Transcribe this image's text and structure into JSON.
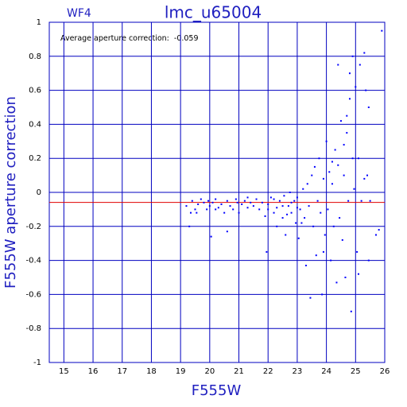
{
  "chart_data": {
    "type": "scatter",
    "title": "lmc_u65004",
    "subtitle": "WF4",
    "annotation": {
      "label": "Average aperture correction:",
      "value": -0.059,
      "color": "#e00000"
    },
    "x_label": "F555W",
    "y_label": "F555W aperture correction",
    "xlim": [
      14.5,
      26
    ],
    "ylim": [
      -1,
      1
    ],
    "xticks": [
      15,
      16,
      17,
      18,
      19,
      20,
      21,
      22,
      23,
      24,
      25,
      26
    ],
    "yticks": [
      -1,
      -0.8,
      -0.6,
      -0.4,
      -0.2,
      0,
      0.2,
      0.4,
      0.6,
      0.8,
      1
    ],
    "grid": true,
    "grid_color": "#0000c0",
    "series": [
      {
        "color": "#0000ff",
        "x": [
          19.2,
          19.3,
          19.35,
          19.4,
          19.5,
          19.55,
          19.6,
          19.7,
          19.8,
          19.9,
          19.95,
          20.0,
          20.1,
          20.05,
          20.2,
          20.3,
          20.4,
          20.5,
          20.6,
          20.7,
          20.8,
          20.9,
          20.95,
          21.0,
          21.1,
          21.2,
          21.3,
          21.4,
          20.6,
          21.5,
          21.6,
          21.7,
          21.8,
          21.9,
          22.0,
          21.95,
          22.1,
          22.2,
          22.3,
          22.3,
          22.4,
          22.5,
          22.55,
          22.6,
          22.7,
          22.75,
          22.8,
          22.9,
          22.95,
          23.0,
          23.05,
          23.1,
          23.2,
          23.25,
          23.3,
          23.35,
          23.4,
          23.45,
          23.5,
          23.55,
          23.6,
          23.65,
          23.7,
          23.75,
          23.8,
          23.85,
          23.9,
          23.95,
          24.0,
          24.05,
          24.1,
          24.15,
          24.2,
          24.25,
          24.3,
          24.35,
          24.4,
          24.45,
          24.5,
          24.55,
          24.6,
          24.65,
          24.7,
          24.75,
          24.8,
          24.85,
          24.9,
          24.95,
          25.0,
          25.05,
          25.1,
          25.15,
          25.2,
          25.3,
          25.35,
          25.4,
          25.45,
          25.5,
          25.7,
          25.8,
          25.9,
          24.6,
          24.7,
          24.8,
          24.4,
          23.9,
          24.2,
          24.9,
          25.1,
          25.3,
          25.45,
          22.0,
          22.2,
          22.5,
          22.65,
          21.3,
          20.2,
          22.8,
          23.0,
          23.15
        ],
        "values": [
          -0.08,
          -0.2,
          -0.12,
          -0.05,
          -0.1,
          -0.12,
          -0.07,
          -0.04,
          -0.06,
          -0.1,
          -0.05,
          -0.08,
          -0.06,
          -0.26,
          -0.04,
          -0.09,
          -0.07,
          -0.12,
          -0.05,
          -0.08,
          -0.1,
          -0.04,
          -0.06,
          -0.12,
          -0.07,
          -0.05,
          -0.09,
          -0.06,
          -0.23,
          -0.08,
          -0.04,
          -0.1,
          -0.06,
          -0.14,
          -0.07,
          -0.35,
          -0.03,
          -0.12,
          -0.09,
          -0.2,
          -0.05,
          -0.15,
          -0.02,
          -0.25,
          -0.08,
          0.0,
          -0.12,
          -0.05,
          -0.18,
          -0.03,
          -0.27,
          -0.1,
          0.02,
          -0.15,
          -0.43,
          0.05,
          -0.08,
          -0.62,
          0.1,
          -0.2,
          0.15,
          -0.37,
          -0.05,
          0.2,
          -0.12,
          -0.6,
          0.08,
          -0.25,
          0.3,
          -0.1,
          0.12,
          -0.4,
          0.05,
          -0.2,
          0.25,
          -0.53,
          0.16,
          -0.15,
          0.42,
          -0.28,
          0.1,
          -0.5,
          0.35,
          -0.05,
          0.55,
          -0.7,
          0.8,
          0.02,
          0.62,
          -0.35,
          0.2,
          0.75,
          -0.05,
          0.82,
          0.6,
          0.1,
          -0.4,
          -0.05,
          -0.25,
          -0.22,
          0.95,
          0.28,
          0.45,
          0.7,
          0.75,
          -0.35,
          0.18,
          0.2,
          -0.48,
          0.08,
          0.5,
          -0.1,
          -0.04,
          -0.08,
          -0.13,
          -0.03,
          -0.1,
          -0.06,
          -0.09,
          -0.18
        ]
      }
    ]
  }
}
